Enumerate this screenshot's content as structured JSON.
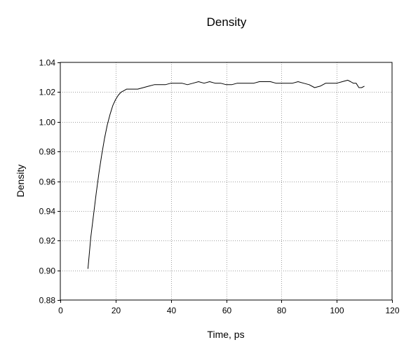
{
  "chart_data": {
    "type": "line",
    "title": "Density",
    "xlabel": "Time, ps",
    "ylabel": "Density",
    "xlim": [
      0,
      120
    ],
    "ylim": [
      0.88,
      1.04
    ],
    "x_ticks": [
      0,
      20,
      40,
      60,
      80,
      100,
      120
    ],
    "x_tick_labels": [
      "0",
      "20",
      "40",
      "60",
      "80",
      "100",
      "120"
    ],
    "y_ticks": [
      0.88,
      0.9,
      0.92,
      0.94,
      0.96,
      0.98,
      1.0,
      1.02,
      1.04
    ],
    "y_tick_labels": [
      "0.88",
      "0.90",
      "0.92",
      "0.94",
      "0.96",
      "0.98",
      "1.00",
      "1.02",
      "1.04"
    ],
    "grid": true,
    "legend": "none",
    "line_color": "#000000",
    "grid_color": "#a0a0a0",
    "series": [
      {
        "x": [
          10,
          11,
          12,
          13,
          14,
          15,
          16,
          17,
          18,
          19,
          20,
          21,
          22,
          23,
          24,
          25,
          26,
          28,
          30,
          32,
          34,
          36,
          38,
          40,
          42,
          44,
          46,
          48,
          50,
          52,
          54,
          56,
          58,
          60,
          62,
          64,
          66,
          68,
          70,
          72,
          74,
          76,
          78,
          80,
          82,
          84,
          86,
          88,
          90,
          92,
          94,
          96,
          98,
          100,
          102,
          104,
          105,
          106,
          107,
          108,
          109,
          110
        ],
        "y": [
          0.901,
          0.922,
          0.937,
          0.952,
          0.966,
          0.978,
          0.989,
          0.998,
          1.005,
          1.011,
          1.015,
          1.018,
          1.02,
          1.021,
          1.022,
          1.022,
          1.022,
          1.022,
          1.023,
          1.024,
          1.025,
          1.025,
          1.025,
          1.026,
          1.026,
          1.026,
          1.025,
          1.026,
          1.027,
          1.026,
          1.027,
          1.026,
          1.026,
          1.025,
          1.025,
          1.026,
          1.026,
          1.026,
          1.026,
          1.027,
          1.027,
          1.027,
          1.026,
          1.026,
          1.026,
          1.026,
          1.027,
          1.026,
          1.025,
          1.023,
          1.024,
          1.026,
          1.026,
          1.026,
          1.027,
          1.028,
          1.027,
          1.026,
          1.026,
          1.023,
          1.023,
          1.024
        ]
      }
    ]
  }
}
